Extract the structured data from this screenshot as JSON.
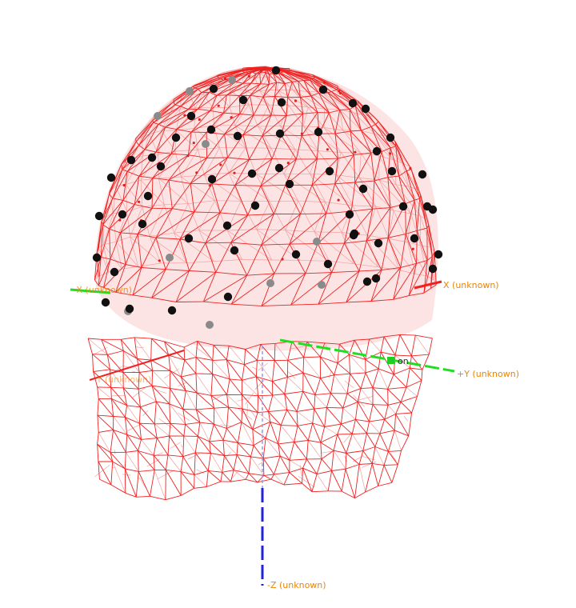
{
  "viewer": {
    "axes": {
      "x_pos": "X (unknown)",
      "x_neg": "-X (unknown)",
      "y_pos": "+Y (unknown)",
      "y_neg": "-Y (unknown)",
      "z_neg": "-Z (unknown)",
      "fiducial": "on"
    },
    "colors": {
      "background": "#ffffff",
      "mesh_front": "#ee2222",
      "mesh_back": "#f3a0a0",
      "scalp_fill": "#fbd5d5",
      "electrode": "#111111",
      "electrode_back": "#8a8a8a",
      "axis_x": "#ee2222",
      "axis_y": "#22dd22",
      "axis_z": "#2222dd",
      "label": "#e8850c"
    }
  }
}
